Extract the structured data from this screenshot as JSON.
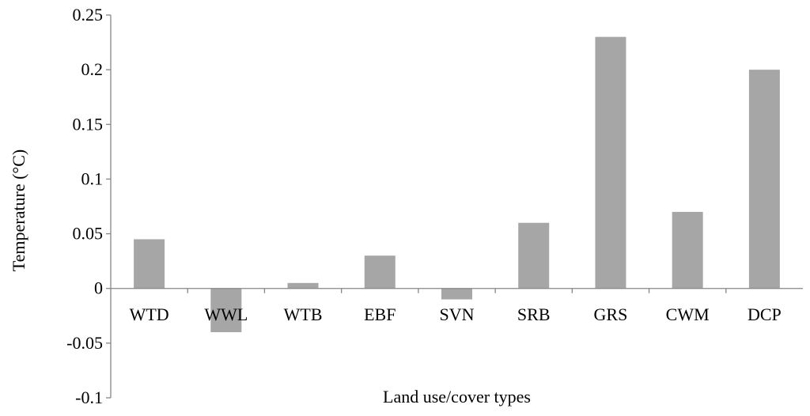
{
  "chart_data": {
    "type": "bar",
    "categories": [
      "WTD",
      "WWL",
      "WTB",
      "EBF",
      "SVN",
      "SRB",
      "GRS",
      "CWM",
      "DCP"
    ],
    "values": [
      0.045,
      -0.04,
      0.005,
      0.03,
      -0.01,
      0.06,
      0.23,
      0.07,
      0.2
    ],
    "xlabel": "Land use/cover types",
    "ylabel": "Temperature (°C)",
    "ylim": [
      -0.1,
      0.25
    ],
    "yticks": [
      "-0.1",
      "-0.05",
      "0",
      "0.05",
      "0.1",
      "0.15",
      "0.2",
      "0.25"
    ],
    "legend": "none",
    "grid": false,
    "bar_color": "#a6a6a6",
    "axis_color": "#868686"
  }
}
